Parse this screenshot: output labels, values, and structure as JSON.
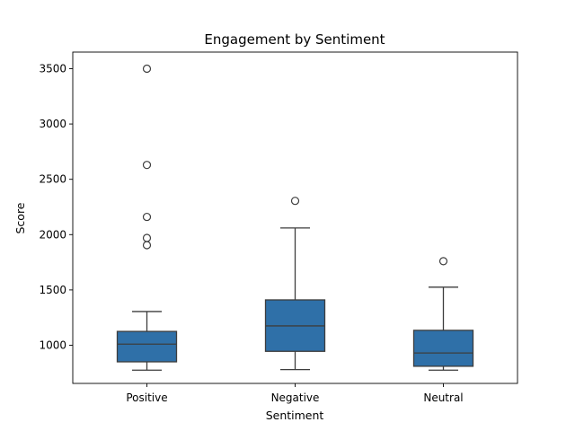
{
  "chart_data": {
    "type": "box",
    "title": "Engagement by Sentiment",
    "xlabel": "Sentiment",
    "ylabel": "Score",
    "ylim": [
      655,
      3650
    ],
    "yticks": [
      1000,
      1500,
      2000,
      2500,
      3000,
      3500
    ],
    "ytick_labels": [
      "1000",
      "1500",
      "2000",
      "2500",
      "3000",
      "3500"
    ],
    "grid": false,
    "box_color": "#2f70a8",
    "line_color": "#3d3d3d",
    "categories": [
      "Positive",
      "Negative",
      "Neutral"
    ],
    "boxes": [
      {
        "category": "Positive",
        "whislo": 775,
        "q1": 850,
        "med": 1010,
        "q3": 1125,
        "whishi": 1305,
        "fliers": [
          1905,
          1970,
          2160,
          2630,
          3500
        ]
      },
      {
        "category": "Negative",
        "whislo": 780,
        "q1": 945,
        "med": 1175,
        "q3": 1410,
        "whishi": 2060,
        "fliers": [
          2305
        ]
      },
      {
        "category": "Neutral",
        "whislo": 775,
        "q1": 810,
        "med": 930,
        "q3": 1135,
        "whishi": 1525,
        "fliers": [
          1760
        ]
      }
    ]
  }
}
